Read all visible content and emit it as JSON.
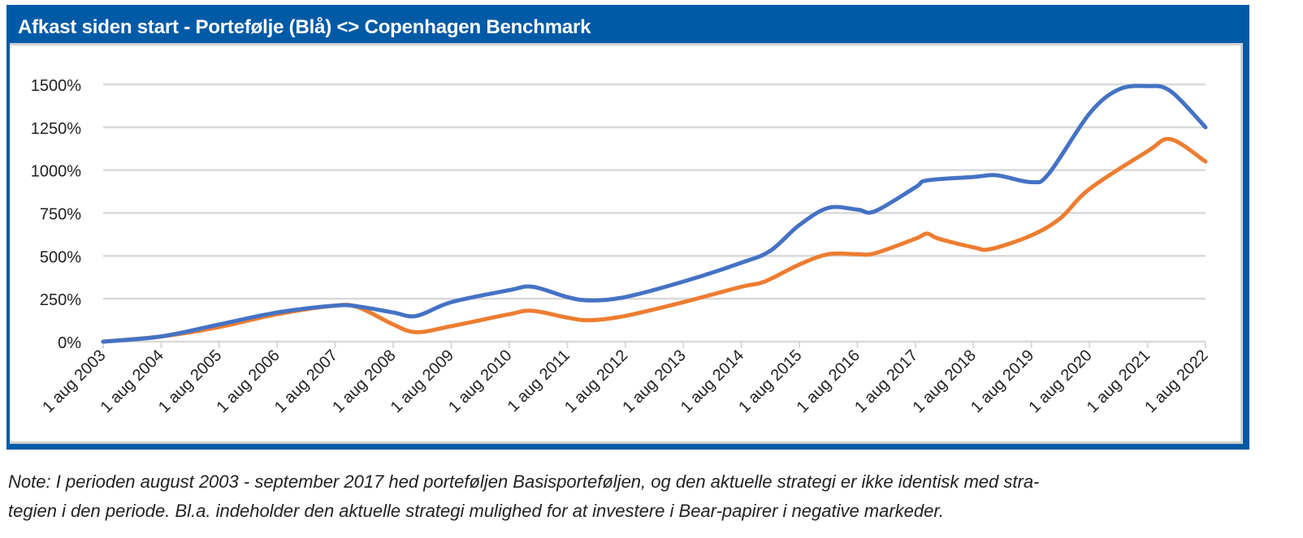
{
  "title": "Afkast siden start - Portefølje (Blå) <> Copenhagen Benchmark",
  "note": {
    "line1": "Note: I perioden august 2003 - september 2017 hed porteføljen Basisporteføljen, og den aktuelle strategi er ikke identisk med stra-",
    "line2": "tegien i den periode. Bl.a. indeholder den aktuelle strategi mulighed for at investere i Bear-papirer i negative markeder."
  },
  "colors": {
    "header": "#005aa6",
    "portfolio": "#4472c4",
    "benchmark": "#ed7d31",
    "grid": "#d9d9d9"
  },
  "chart_data": {
    "type": "line",
    "title": "Afkast siden start - Portefølje (Blå) <> Copenhagen Benchmark",
    "xlabel": "",
    "ylabel": "",
    "ylim": [
      0,
      1500
    ],
    "yticks": [
      0,
      250,
      500,
      750,
      1000,
      1250,
      1500
    ],
    "ytick_labels": [
      "0%",
      "250%",
      "500%",
      "750%",
      "1000%",
      "1250%",
      "1500%"
    ],
    "xlim": [
      2003,
      2022
    ],
    "xtick_labels": [
      "1 aug 2003",
      "1 aug 2004",
      "1 aug 2005",
      "1 aug 2006",
      "1 aug 2007",
      "1 aug 2008",
      "1 aug 2009",
      "1 aug 2010",
      "1 aug 2011",
      "1 aug 2012",
      "1 aug 2013",
      "1 aug 2014",
      "1 aug 2015",
      "1 aug 2016",
      "1 aug 2017",
      "1 aug 2018",
      "1 aug 2019",
      "1 aug 2020",
      "1 aug 2021",
      "1 aug 2022"
    ],
    "grid": true,
    "legend": "none (colors described in title: blue = portfolio)",
    "series": [
      {
        "name": "Portefølje (Blå)",
        "color": "#4472c4",
        "x": [
          2003,
          2004,
          2005,
          2006,
          2007,
          2007.4,
          2008,
          2008.4,
          2009,
          2010,
          2010.4,
          2011,
          2011.4,
          2012,
          2013,
          2014,
          2014.5,
          2015,
          2015.5,
          2016,
          2016.3,
          2017,
          2017.2,
          2018,
          2018.4,
          2019,
          2019.3,
          2020,
          2020.5,
          2021,
          2021.4,
          2022
        ],
        "values": [
          0,
          30,
          100,
          170,
          210,
          205,
          170,
          150,
          230,
          300,
          320,
          260,
          240,
          260,
          350,
          460,
          530,
          680,
          780,
          770,
          760,
          900,
          940,
          960,
          970,
          930,
          980,
          1330,
          1470,
          1490,
          1460,
          1250
        ]
      },
      {
        "name": "Copenhagen Benchmark",
        "color": "#ed7d31",
        "x": [
          2003,
          2004,
          2005,
          2006,
          2007,
          2007.4,
          2008,
          2008.4,
          2009,
          2010,
          2010.4,
          2011,
          2011.4,
          2012,
          2013,
          2014,
          2014.4,
          2015,
          2015.5,
          2016,
          2016.3,
          2017,
          2017.2,
          2017.4,
          2018,
          2018.3,
          2019,
          2019.5,
          2020,
          2021,
          2021.4,
          2022
        ],
        "values": [
          0,
          30,
          85,
          160,
          210,
          200,
          100,
          55,
          90,
          160,
          180,
          140,
          125,
          150,
          230,
          320,
          350,
          450,
          510,
          510,
          515,
          600,
          630,
          600,
          550,
          540,
          620,
          720,
          890,
          1110,
          1180,
          1050
        ]
      }
    ]
  }
}
